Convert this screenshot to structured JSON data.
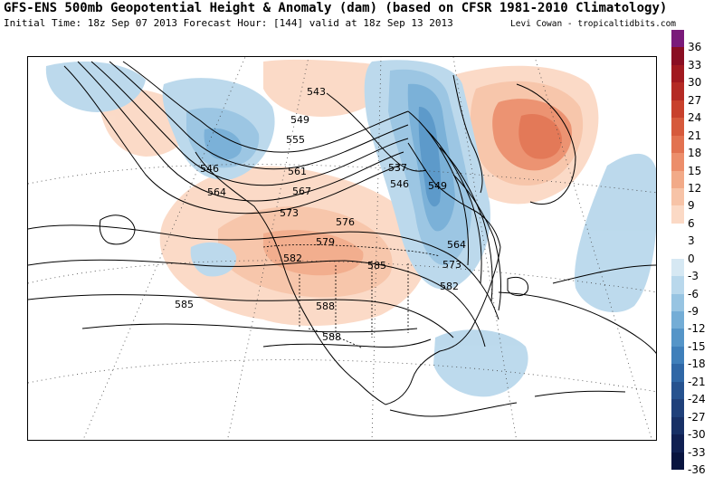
{
  "header": {
    "title": "GFS-ENS 500mb Geopotential Height & Anomaly (dam) (based on CFSR 1981-2010 Climatology)",
    "subtitle": "Initial Time: 18z Sep 07 2013 Forecast Hour: [144] valid at 18z Sep 13 2013",
    "credit": "Levi Cowan - tropicaltidbits.com"
  },
  "map": {
    "contour_labels": [
      "543",
      "549",
      "555",
      "546",
      "561",
      "564",
      "567",
      "573",
      "576",
      "579",
      "582",
      "585",
      "585",
      "588",
      "588",
      "537",
      "546",
      "549",
      "564",
      "573",
      "582"
    ]
  },
  "colorbar": {
    "segments": [
      {
        "label": "36",
        "color": "#7a1a7a"
      },
      {
        "label": "33",
        "color": "#8a0e22"
      },
      {
        "label": "30",
        "color": "#a1191f"
      },
      {
        "label": "27",
        "color": "#b42a24"
      },
      {
        "label": "24",
        "color": "#c8412c"
      },
      {
        "label": "21",
        "color": "#d65a3c"
      },
      {
        "label": "18",
        "color": "#e27250"
      },
      {
        "label": "15",
        "color": "#ec8e6b"
      },
      {
        "label": "12",
        "color": "#f2aa88"
      },
      {
        "label": "9",
        "color": "#f7c3a7"
      },
      {
        "label": "6",
        "color": "#fbd9c5"
      },
      {
        "label": "3",
        "color": "#ffffff"
      },
      {
        "label": "0",
        "color": "#ffffff"
      },
      {
        "label": "-3",
        "color": "#d6e8f3"
      },
      {
        "label": "-6",
        "color": "#b9d8ec"
      },
      {
        "label": "-9",
        "color": "#97c4e2"
      },
      {
        "label": "-12",
        "color": "#74add6"
      },
      {
        "label": "-15",
        "color": "#5595c8"
      },
      {
        "label": "-18",
        "color": "#3f7fba"
      },
      {
        "label": "-21",
        "color": "#2f67a6"
      },
      {
        "label": "-24",
        "color": "#26528f"
      },
      {
        "label": "-27",
        "color": "#1f407a"
      },
      {
        "label": "-30",
        "color": "#173066"
      },
      {
        "label": "-33",
        "color": "#102052"
      },
      {
        "label": "-36",
        "color": "#08143f"
      }
    ]
  }
}
